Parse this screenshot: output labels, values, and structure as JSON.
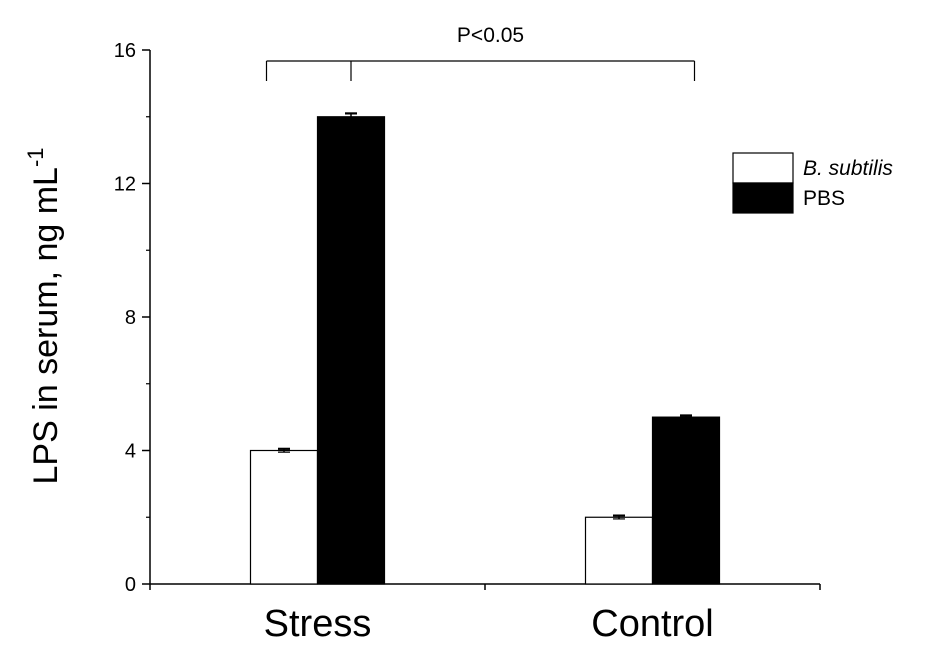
{
  "chart_data": {
    "type": "bar",
    "title": "",
    "xlabel": "",
    "ylabel": "LPS in serum, ng mL",
    "ylabel_superscript": "-1",
    "categories": [
      "Stress",
      "Control"
    ],
    "series": [
      {
        "name": "B. subtilis",
        "values": [
          4.0,
          2.0
        ],
        "errors": [
          0.05,
          0.05
        ],
        "color": "#ffffff",
        "edge": "#000000",
        "italic": true
      },
      {
        "name": "PBS",
        "values": [
          14.0,
          5.0
        ],
        "errors": [
          0.1,
          0.05
        ],
        "color": "#000000",
        "edge": "#000000",
        "italic": false
      }
    ],
    "ylim": [
      0,
      16
    ],
    "yticks": [
      0,
      4,
      8,
      12,
      16
    ],
    "ytick_labels": [
      "0",
      "4",
      "8",
      "12",
      "16"
    ],
    "grid": false,
    "legend_position": "top-right",
    "significance": {
      "label": "P<0.05",
      "from": "Stress",
      "to": "Control"
    }
  }
}
